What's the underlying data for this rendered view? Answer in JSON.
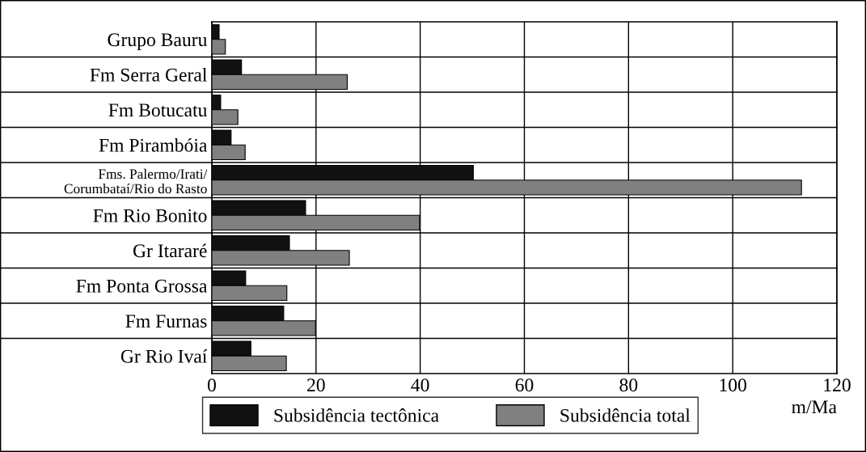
{
  "chart_data": {
    "type": "bar",
    "orientation": "horizontal",
    "categories": [
      "Grupo Bauru",
      "Fm Serra Geral",
      "Fm Botucatu",
      "Fm Pirambóia",
      "Fms. Palermo/Irati/\nCorumbataí/Rio do Rasto",
      "Fm Rio Bonito",
      "Gr Itararé",
      "Fm Ponta Grossa",
      "Fm Furnas",
      "Gr Rio Ivaí"
    ],
    "series": [
      {
        "name": "Subsidência tectônica",
        "color": "#111111",
        "values": [
          1.4,
          5.7,
          1.7,
          3.7,
          50.2,
          18,
          14.9,
          6.5,
          13.8,
          7.5
        ]
      },
      {
        "name": "Subsidência total",
        "color": "#808080",
        "values": [
          2.6,
          26,
          5.0,
          6.4,
          113.2,
          39.9,
          26.4,
          14.4,
          19.9,
          14.3
        ]
      }
    ],
    "xlim": [
      0,
      120
    ],
    "xticks": [
      0,
      20,
      40,
      60,
      80,
      100,
      120
    ],
    "xlabel": "m/Ma",
    "grid": true,
    "legend": "bottom"
  }
}
